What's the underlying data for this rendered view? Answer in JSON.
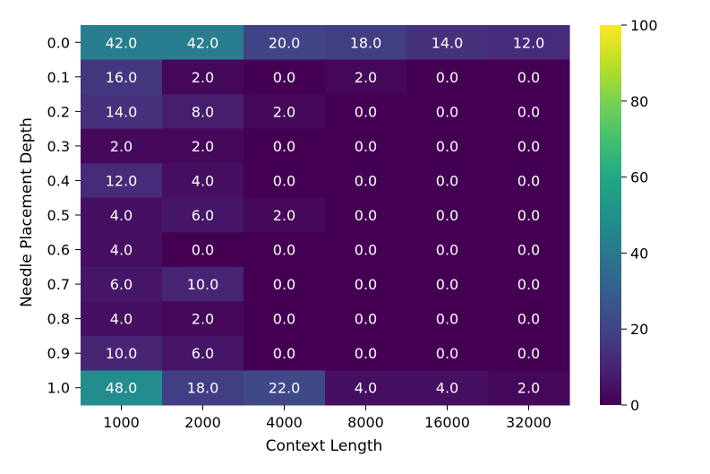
{
  "chart_data": {
    "type": "heatmap",
    "title": "",
    "xlabel": "Context Length",
    "ylabel": "Needle Placement Depth",
    "x_categories": [
      "1000",
      "2000",
      "4000",
      "8000",
      "16000",
      "32000"
    ],
    "y_categories": [
      "0.0",
      "0.1",
      "0.2",
      "0.3",
      "0.4",
      "0.5",
      "0.6",
      "0.7",
      "0.8",
      "0.9",
      "1.0"
    ],
    "values": [
      [
        42.0,
        42.0,
        20.0,
        18.0,
        14.0,
        12.0
      ],
      [
        16.0,
        2.0,
        0.0,
        2.0,
        0.0,
        0.0
      ],
      [
        14.0,
        8.0,
        2.0,
        0.0,
        0.0,
        0.0
      ],
      [
        2.0,
        2.0,
        0.0,
        0.0,
        0.0,
        0.0
      ],
      [
        12.0,
        4.0,
        0.0,
        0.0,
        0.0,
        0.0
      ],
      [
        4.0,
        6.0,
        2.0,
        0.0,
        0.0,
        0.0
      ],
      [
        4.0,
        0.0,
        0.0,
        0.0,
        0.0,
        0.0
      ],
      [
        6.0,
        10.0,
        0.0,
        0.0,
        0.0,
        0.0
      ],
      [
        4.0,
        2.0,
        0.0,
        0.0,
        0.0,
        0.0
      ],
      [
        10.0,
        6.0,
        0.0,
        0.0,
        0.0,
        0.0
      ],
      [
        48.0,
        18.0,
        22.0,
        4.0,
        4.0,
        2.0
      ]
    ],
    "colorbar": {
      "min": 0,
      "max": 100,
      "ticks": [
        0,
        20,
        40,
        60,
        80,
        100
      ],
      "colormap": "viridis"
    },
    "value_format": "one-decimal",
    "annotation_color": "#ffffff"
  }
}
